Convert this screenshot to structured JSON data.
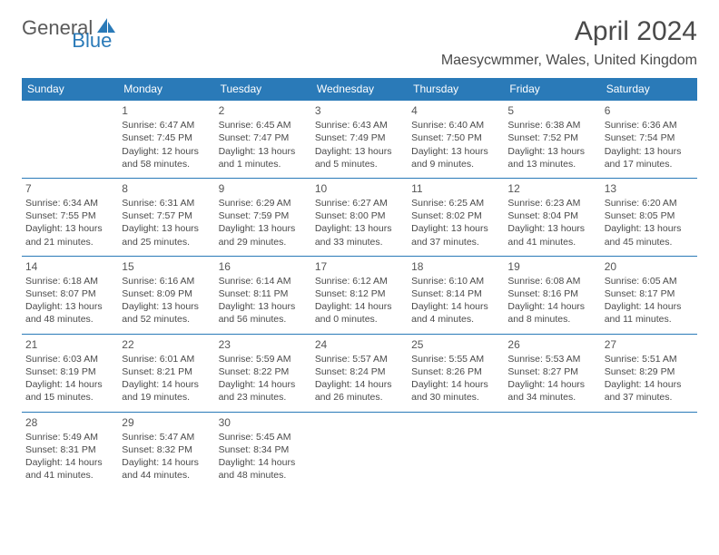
{
  "brand": {
    "text1": "General",
    "text2": "Blue"
  },
  "title": "April 2024",
  "location": "Maesycwmmer, Wales, United Kingdom",
  "colors": {
    "header_bg": "#2a7ab8",
    "header_text": "#ffffff",
    "body_text": "#4a4a4a",
    "row_border": "#2a7ab8",
    "background": "#ffffff"
  },
  "font": {
    "title_size": 30,
    "location_size": 16,
    "dayheader_size": 12,
    "cell_size": 10.5
  },
  "day_headers": [
    "Sunday",
    "Monday",
    "Tuesday",
    "Wednesday",
    "Thursday",
    "Friday",
    "Saturday"
  ],
  "weeks": [
    [
      null,
      {
        "n": "1",
        "sr": "Sunrise: 6:47 AM",
        "ss": "Sunset: 7:45 PM",
        "d1": "Daylight: 12 hours",
        "d2": "and 58 minutes."
      },
      {
        "n": "2",
        "sr": "Sunrise: 6:45 AM",
        "ss": "Sunset: 7:47 PM",
        "d1": "Daylight: 13 hours",
        "d2": "and 1 minutes."
      },
      {
        "n": "3",
        "sr": "Sunrise: 6:43 AM",
        "ss": "Sunset: 7:49 PM",
        "d1": "Daylight: 13 hours",
        "d2": "and 5 minutes."
      },
      {
        "n": "4",
        "sr": "Sunrise: 6:40 AM",
        "ss": "Sunset: 7:50 PM",
        "d1": "Daylight: 13 hours",
        "d2": "and 9 minutes."
      },
      {
        "n": "5",
        "sr": "Sunrise: 6:38 AM",
        "ss": "Sunset: 7:52 PM",
        "d1": "Daylight: 13 hours",
        "d2": "and 13 minutes."
      },
      {
        "n": "6",
        "sr": "Sunrise: 6:36 AM",
        "ss": "Sunset: 7:54 PM",
        "d1": "Daylight: 13 hours",
        "d2": "and 17 minutes."
      }
    ],
    [
      {
        "n": "7",
        "sr": "Sunrise: 6:34 AM",
        "ss": "Sunset: 7:55 PM",
        "d1": "Daylight: 13 hours",
        "d2": "and 21 minutes."
      },
      {
        "n": "8",
        "sr": "Sunrise: 6:31 AM",
        "ss": "Sunset: 7:57 PM",
        "d1": "Daylight: 13 hours",
        "d2": "and 25 minutes."
      },
      {
        "n": "9",
        "sr": "Sunrise: 6:29 AM",
        "ss": "Sunset: 7:59 PM",
        "d1": "Daylight: 13 hours",
        "d2": "and 29 minutes."
      },
      {
        "n": "10",
        "sr": "Sunrise: 6:27 AM",
        "ss": "Sunset: 8:00 PM",
        "d1": "Daylight: 13 hours",
        "d2": "and 33 minutes."
      },
      {
        "n": "11",
        "sr": "Sunrise: 6:25 AM",
        "ss": "Sunset: 8:02 PM",
        "d1": "Daylight: 13 hours",
        "d2": "and 37 minutes."
      },
      {
        "n": "12",
        "sr": "Sunrise: 6:23 AM",
        "ss": "Sunset: 8:04 PM",
        "d1": "Daylight: 13 hours",
        "d2": "and 41 minutes."
      },
      {
        "n": "13",
        "sr": "Sunrise: 6:20 AM",
        "ss": "Sunset: 8:05 PM",
        "d1": "Daylight: 13 hours",
        "d2": "and 45 minutes."
      }
    ],
    [
      {
        "n": "14",
        "sr": "Sunrise: 6:18 AM",
        "ss": "Sunset: 8:07 PM",
        "d1": "Daylight: 13 hours",
        "d2": "and 48 minutes."
      },
      {
        "n": "15",
        "sr": "Sunrise: 6:16 AM",
        "ss": "Sunset: 8:09 PM",
        "d1": "Daylight: 13 hours",
        "d2": "and 52 minutes."
      },
      {
        "n": "16",
        "sr": "Sunrise: 6:14 AM",
        "ss": "Sunset: 8:11 PM",
        "d1": "Daylight: 13 hours",
        "d2": "and 56 minutes."
      },
      {
        "n": "17",
        "sr": "Sunrise: 6:12 AM",
        "ss": "Sunset: 8:12 PM",
        "d1": "Daylight: 14 hours",
        "d2": "and 0 minutes."
      },
      {
        "n": "18",
        "sr": "Sunrise: 6:10 AM",
        "ss": "Sunset: 8:14 PM",
        "d1": "Daylight: 14 hours",
        "d2": "and 4 minutes."
      },
      {
        "n": "19",
        "sr": "Sunrise: 6:08 AM",
        "ss": "Sunset: 8:16 PM",
        "d1": "Daylight: 14 hours",
        "d2": "and 8 minutes."
      },
      {
        "n": "20",
        "sr": "Sunrise: 6:05 AM",
        "ss": "Sunset: 8:17 PM",
        "d1": "Daylight: 14 hours",
        "d2": "and 11 minutes."
      }
    ],
    [
      {
        "n": "21",
        "sr": "Sunrise: 6:03 AM",
        "ss": "Sunset: 8:19 PM",
        "d1": "Daylight: 14 hours",
        "d2": "and 15 minutes."
      },
      {
        "n": "22",
        "sr": "Sunrise: 6:01 AM",
        "ss": "Sunset: 8:21 PM",
        "d1": "Daylight: 14 hours",
        "d2": "and 19 minutes."
      },
      {
        "n": "23",
        "sr": "Sunrise: 5:59 AM",
        "ss": "Sunset: 8:22 PM",
        "d1": "Daylight: 14 hours",
        "d2": "and 23 minutes."
      },
      {
        "n": "24",
        "sr": "Sunrise: 5:57 AM",
        "ss": "Sunset: 8:24 PM",
        "d1": "Daylight: 14 hours",
        "d2": "and 26 minutes."
      },
      {
        "n": "25",
        "sr": "Sunrise: 5:55 AM",
        "ss": "Sunset: 8:26 PM",
        "d1": "Daylight: 14 hours",
        "d2": "and 30 minutes."
      },
      {
        "n": "26",
        "sr": "Sunrise: 5:53 AM",
        "ss": "Sunset: 8:27 PM",
        "d1": "Daylight: 14 hours",
        "d2": "and 34 minutes."
      },
      {
        "n": "27",
        "sr": "Sunrise: 5:51 AM",
        "ss": "Sunset: 8:29 PM",
        "d1": "Daylight: 14 hours",
        "d2": "and 37 minutes."
      }
    ],
    [
      {
        "n": "28",
        "sr": "Sunrise: 5:49 AM",
        "ss": "Sunset: 8:31 PM",
        "d1": "Daylight: 14 hours",
        "d2": "and 41 minutes."
      },
      {
        "n": "29",
        "sr": "Sunrise: 5:47 AM",
        "ss": "Sunset: 8:32 PM",
        "d1": "Daylight: 14 hours",
        "d2": "and 44 minutes."
      },
      {
        "n": "30",
        "sr": "Sunrise: 5:45 AM",
        "ss": "Sunset: 8:34 PM",
        "d1": "Daylight: 14 hours",
        "d2": "and 48 minutes."
      },
      null,
      null,
      null,
      null
    ]
  ]
}
